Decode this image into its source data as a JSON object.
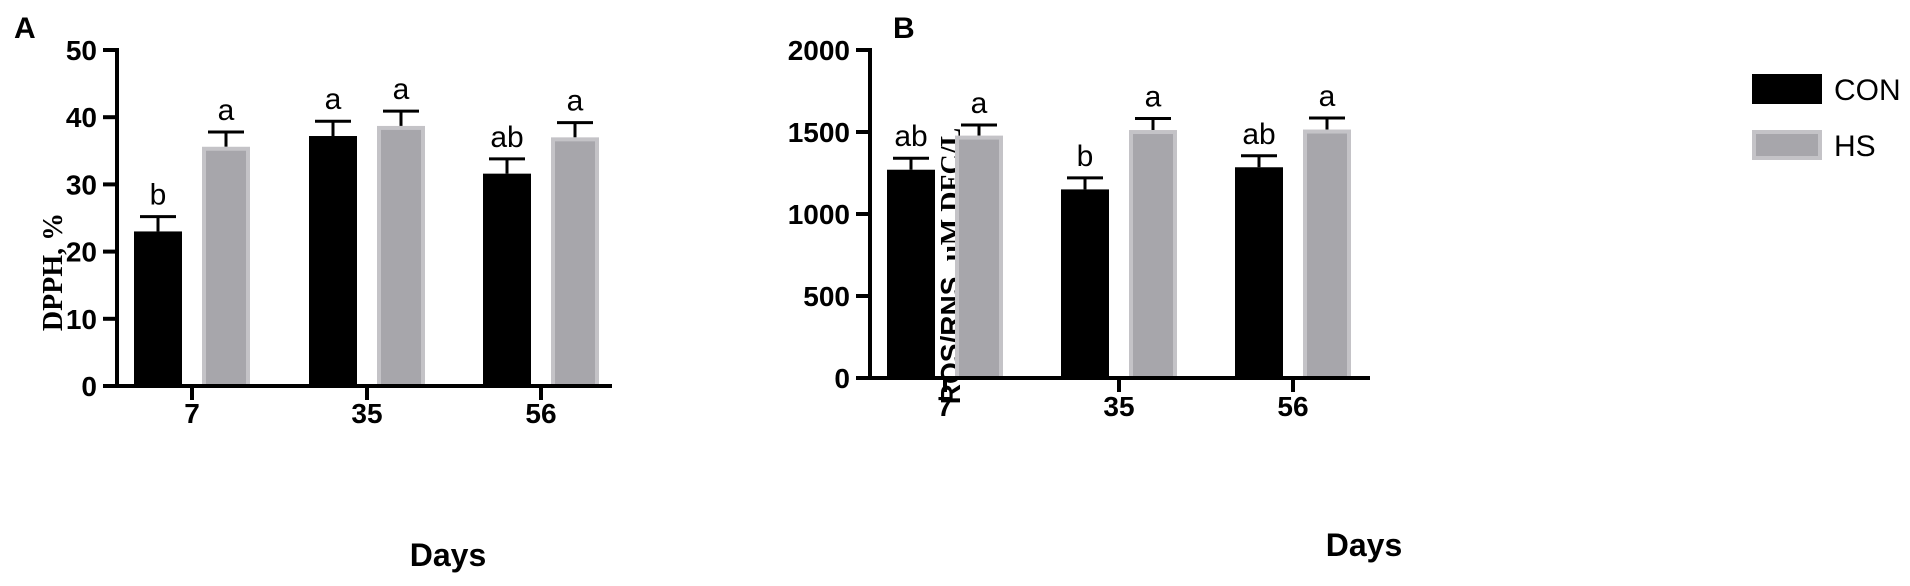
{
  "chart_data": [
    {
      "panel": "A",
      "type": "bar",
      "categories": [
        "7",
        "35",
        "56"
      ],
      "series": [
        {
          "name": "CON",
          "values": [
            23,
            37.2,
            31.6
          ],
          "errors": [
            2.2,
            2.2,
            2.2
          ],
          "labels": [
            "b",
            "a",
            "ab"
          ]
        },
        {
          "name": "HS",
          "values": [
            35.6,
            38.7,
            37
          ],
          "errors": [
            2.2,
            2.2,
            2.2
          ],
          "labels": [
            "a",
            "a",
            "a"
          ]
        }
      ],
      "xlabel": "Days",
      "ylabel": "DPPH, %",
      "ylim": [
        0,
        50
      ],
      "yticks": [
        "0",
        "10",
        "20",
        "30",
        "40",
        "50"
      ],
      "grid": false
    },
    {
      "panel": "B",
      "type": "bar",
      "categories": [
        "7",
        "35",
        "56"
      ],
      "series": [
        {
          "name": "CON",
          "values": [
            1270,
            1150,
            1285
          ],
          "errors": [
            70,
            70,
            70
          ],
          "labels": [
            "ab",
            "b",
            "ab"
          ]
        },
        {
          "name": "HS",
          "values": [
            1478,
            1512,
            1515
          ],
          "errors": [
            65,
            70,
            70
          ],
          "labels": [
            "a",
            "a",
            "a"
          ]
        }
      ],
      "xlabel": "Days",
      "ylabel": "ROS/RNS, ",
      "ylabel_unit": "μM DFC/L",
      "ylim": [
        0,
        2000
      ],
      "yticks": [
        "0",
        "500",
        "1000",
        "1500",
        "2000"
      ],
      "grid": false
    }
  ],
  "legend": {
    "position": "top-right",
    "items": [
      {
        "label": "CON",
        "color": "#000000"
      },
      {
        "label": "HS",
        "color": "#a7a6ab"
      }
    ]
  },
  "colors": {
    "con": "#000000",
    "hs": "#a7a6ab",
    "hs_edge": "#c4c3c7"
  }
}
